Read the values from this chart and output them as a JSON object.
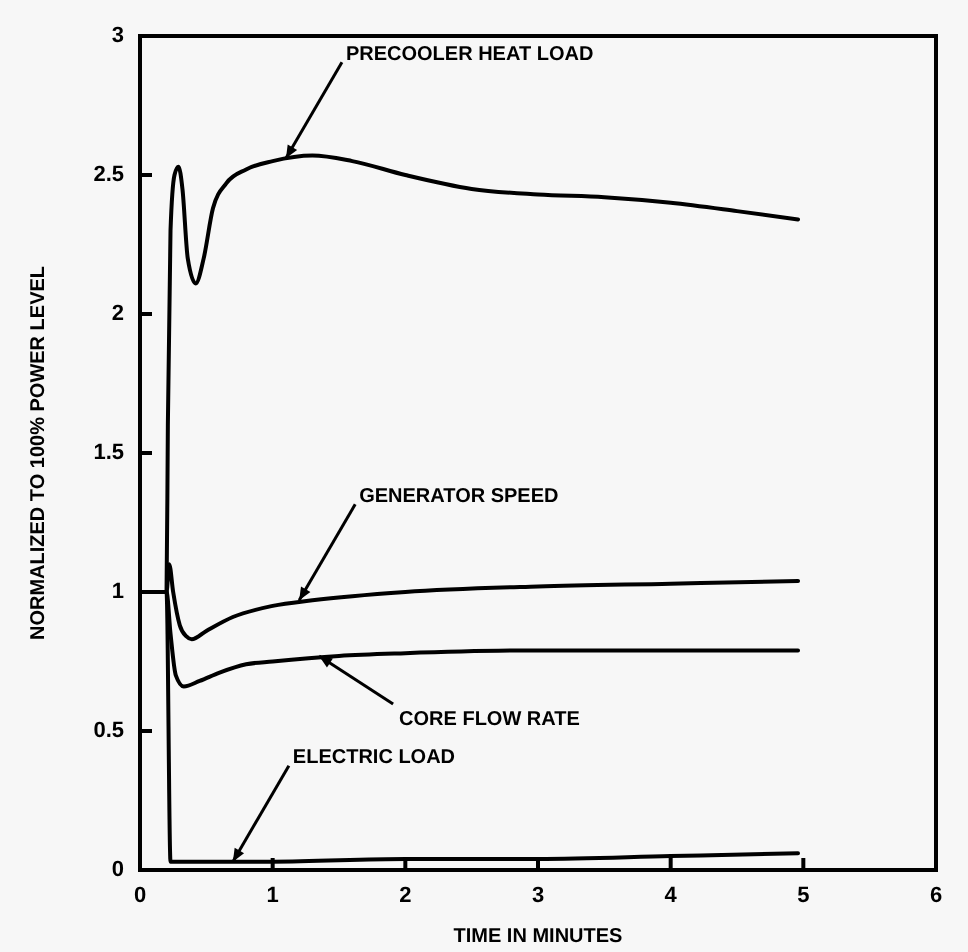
{
  "chart_data": {
    "type": "line",
    "xlabel": "TIME IN MINUTES",
    "ylabel": "NORMALIZED TO 100% POWER LEVEL",
    "xlim": [
      0,
      6
    ],
    "ylim": [
      0,
      3
    ],
    "xticks": [
      0,
      1,
      2,
      3,
      4,
      5,
      6
    ],
    "yticks": [
      0,
      0.5,
      1,
      1.5,
      2,
      2.5,
      3
    ],
    "marker": "none",
    "line_style": "solid",
    "series": [
      {
        "color": "#000000",
        "x": [
          0,
          0.2,
          0.21,
          0.23,
          0.26,
          0.29,
          0.32,
          0.36,
          0.42,
          0.48,
          0.55,
          0.65,
          0.8,
          1.0,
          1.3,
          1.6,
          2.0,
          2.5,
          3.0,
          3.5,
          4.0,
          4.5,
          4.96
        ],
        "values": [
          1,
          1,
          1.6,
          2.3,
          2.5,
          2.53,
          2.45,
          2.2,
          2.11,
          2.2,
          2.38,
          2.47,
          2.52,
          2.55,
          2.57,
          2.55,
          2.5,
          2.45,
          2.43,
          2.42,
          2.4,
          2.37,
          2.34
        ]
      },
      {
        "color": "#000000",
        "x": [
          0,
          0.2,
          0.22,
          0.25,
          0.3,
          0.35,
          0.39,
          0.5,
          0.7,
          1.0,
          1.3,
          2,
          3,
          4,
          4.96
        ],
        "values": [
          1,
          1,
          1.1,
          1.0,
          0.88,
          0.84,
          0.83,
          0.86,
          0.91,
          0.95,
          0.97,
          1.0,
          1.02,
          1.03,
          1.04
        ]
      },
      {
        "color": "#000000",
        "x": [
          0,
          0.2,
          0.23,
          0.27,
          0.33,
          0.45,
          0.6,
          0.8,
          1.0,
          1.5,
          2,
          3,
          4,
          4.96
        ],
        "values": [
          1,
          1,
          0.85,
          0.7,
          0.66,
          0.68,
          0.71,
          0.74,
          0.75,
          0.77,
          0.78,
          0.79,
          0.79,
          0.79
        ]
      },
      {
        "color": "#000000",
        "x": [
          0,
          0.2,
          0.23,
          1,
          2,
          3,
          4,
          4.96
        ],
        "values": [
          1,
          1,
          0.03,
          0.03,
          0.04,
          0.04,
          0.05,
          0.06
        ]
      }
    ],
    "annotations": [
      {
        "text": "PRECOOLER HEAT LOAD",
        "x": 1.1,
        "y": 2.56
      },
      {
        "text": "GENERATOR SPEED",
        "x": 1.2,
        "y": 0.97
      },
      {
        "text": "CORE FLOW RATE",
        "x": 1.35,
        "y": 0.77
      },
      {
        "text": "ELECTRIC LOAD",
        "x": 0.7,
        "y": 0.03
      }
    ]
  }
}
